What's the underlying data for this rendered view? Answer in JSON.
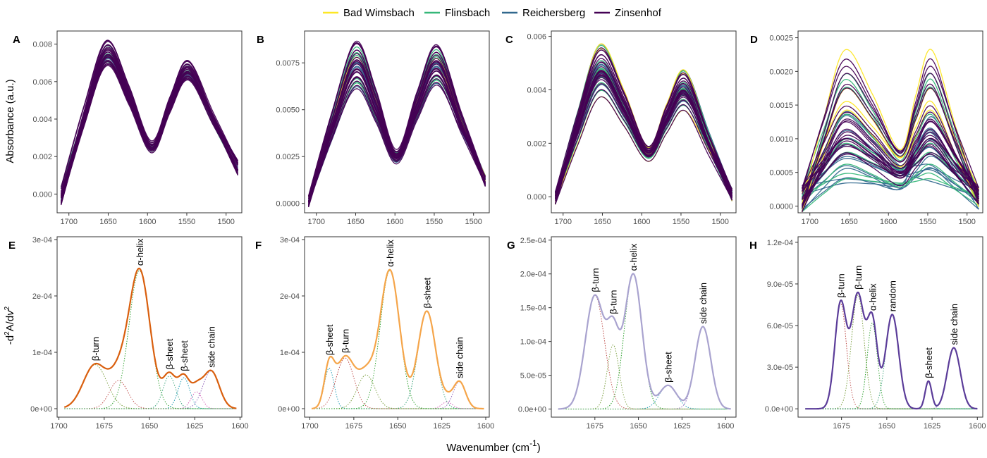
{
  "legend": {
    "entries": [
      {
        "name": "Bad Wimsbach",
        "color": "#FDE725"
      },
      {
        "name": "Flinsbach",
        "color": "#35B779"
      },
      {
        "name": "Reichersberg",
        "color": "#31688E"
      },
      {
        "name": "Zinsenhof",
        "color": "#440154"
      }
    ]
  },
  "axes": {
    "y_top": "Absorbance (a.u.)",
    "y_bottom_parts": [
      "-d",
      "2",
      "A/d",
      "v",
      "2"
    ],
    "x_parts": [
      "Wavenumber (cm",
      "-1",
      ")"
    ]
  },
  "chart_data": [
    {
      "panel": "A",
      "type": "line",
      "description_series": "absorbance spectra",
      "xlim": [
        1715,
        1480
      ],
      "xticks": [
        1700,
        1650,
        1600,
        1550,
        1500
      ],
      "ylim": [
        -0.001,
        0.0087
      ],
      "yticks": [
        0,
        0.002,
        0.004,
        0.006,
        0.008
      ],
      "ytick_labels": [
        "0.000",
        "0.002",
        "0.004",
        "0.006",
        "0.008"
      ],
      "peak1": {
        "x": 1652,
        "y_min": 0.0066,
        "y_max": 0.0083
      },
      "valley": {
        "x": 1595,
        "y_min": 0.0021,
        "y_max": 0.0029
      },
      "peak2": {
        "x": 1548,
        "y_min": 0.0059,
        "y_max": 0.0072
      },
      "start": {
        "x": 1710,
        "y_min": -0.0006,
        "y_max": 0.0004
      },
      "end": {
        "x": 1485,
        "y_min": 0.001,
        "y_max": 0.0018
      },
      "groups": [
        {
          "name": "Bad Wimsbach",
          "n": 0
        },
        {
          "name": "Flinsbach",
          "n": 6
        },
        {
          "name": "Reichersberg",
          "n": 5
        },
        {
          "name": "Zinsenhof",
          "n": 24
        }
      ]
    },
    {
      "panel": "B",
      "type": "line",
      "xlim": [
        1715,
        1480
      ],
      "xticks": [
        1700,
        1650,
        1600,
        1550,
        1500
      ],
      "ylim": [
        -0.0005,
        0.0092
      ],
      "yticks": [
        0,
        0.0025,
        0.005,
        0.0075
      ],
      "ytick_labels": [
        "0.0000",
        "0.0025",
        "0.0050",
        "0.0075"
      ],
      "peak1": {
        "x": 1650,
        "y_min": 0.0061,
        "y_max": 0.0087
      },
      "valley": {
        "x": 1598,
        "y_min": 0.0021,
        "y_max": 0.0029
      },
      "peak2": {
        "x": 1546,
        "y_min": 0.0063,
        "y_max": 0.0085
      },
      "start": {
        "x": 1710,
        "y_min": -0.0002,
        "y_max": 0.0004
      },
      "end": {
        "x": 1485,
        "y_min": 0.0009,
        "y_max": 0.0015
      },
      "groups": [
        {
          "name": "Bad Wimsbach",
          "n": 2
        },
        {
          "name": "Flinsbach",
          "n": 6
        },
        {
          "name": "Reichersberg",
          "n": 5
        },
        {
          "name": "Zinsenhof",
          "n": 24
        }
      ]
    },
    {
      "panel": "C",
      "type": "line",
      "xlim": [
        1715,
        1480
      ],
      "xticks": [
        1700,
        1650,
        1600,
        1550,
        1500
      ],
      "ylim": [
        -0.0006,
        0.0062
      ],
      "yticks": [
        0,
        0.002,
        0.004,
        0.006
      ],
      "ytick_labels": [
        "0.000",
        "0.002",
        "0.004",
        "0.006"
      ],
      "peak1": {
        "x": 1653,
        "y_min": 0.0037,
        "y_max": 0.0058
      },
      "valley": {
        "x": 1592,
        "y_min": 0.0013,
        "y_max": 0.002
      },
      "peak2": {
        "x": 1545,
        "y_min": 0.0032,
        "y_max": 0.0048
      },
      "start": {
        "x": 1710,
        "y_min": -0.0003,
        "y_max": 0.0002
      },
      "end": {
        "x": 1485,
        "y_min": -0.0002,
        "y_max": 0.0003
      },
      "groups": [
        {
          "name": "Bad Wimsbach",
          "n": 4
        },
        {
          "name": "Flinsbach",
          "n": 8
        },
        {
          "name": "Reichersberg",
          "n": 10
        },
        {
          "name": "Zinsenhof",
          "n": 22
        }
      ]
    },
    {
      "panel": "D",
      "type": "line",
      "xlim": [
        1715,
        1480
      ],
      "xticks": [
        1700,
        1650,
        1600,
        1550,
        1500
      ],
      "ylim": [
        -0.0001,
        0.0026
      ],
      "yticks": [
        0,
        0.0005,
        0.001,
        0.0015,
        0.002,
        0.0025
      ],
      "ytick_labels": [
        "0.0000",
        "0.0005",
        "0.0010",
        "0.0015",
        "0.0020",
        "0.0025"
      ],
      "peak1": {
        "x": 1655,
        "y_min": 0.0002,
        "y_max": 0.00245
      },
      "valley": {
        "x": 1585,
        "y_min": 0.0001,
        "y_max": 0.00105
      },
      "peak2": {
        "x": 1545,
        "y_min": 0.0002,
        "y_max": 0.00245
      },
      "start": {
        "x": 1710,
        "y_min": -0.0001,
        "y_max": 0.0003
      },
      "end": {
        "x": 1485,
        "y_min": -5e-05,
        "y_max": 0.0003
      },
      "groups": [
        {
          "name": "Bad Wimsbach",
          "n": 4
        },
        {
          "name": "Flinsbach",
          "n": 10
        },
        {
          "name": "Reichersberg",
          "n": 14
        },
        {
          "name": "Zinsenhof",
          "n": 20
        }
      ]
    },
    {
      "panel": "E",
      "type": "line",
      "color": "#D95F0E",
      "xlim": [
        1701,
        1599
      ],
      "xticks": [
        1700,
        1675,
        1650,
        1625,
        1600
      ],
      "xtick_labels": [
        "1700",
        "1675",
        "1650",
        "1625",
        "1600"
      ],
      "ylim": [
        -1.5e-05,
        0.000305
      ],
      "yticks": [
        0,
        0.0001,
        0.0002,
        0.0003
      ],
      "ytick_labels": [
        "0e+00",
        "1e-04",
        "2e-04",
        "3e-04"
      ],
      "range": [
        1697,
        1602
      ],
      "bands": [
        {
          "label": "β-turn",
          "center": 1680,
          "height": 7.8e-05,
          "width": 6.5,
          "color": "#7a9e3e"
        },
        {
          "label": "",
          "center": 1667,
          "height": 5e-05,
          "width": 5,
          "color": "#c0504d"
        },
        {
          "label": "α-helix",
          "center": 1655.5,
          "height": 0.000245,
          "width": 5.8,
          "color": "#2ca02c"
        },
        {
          "label": "β-sheet",
          "center": 1639,
          "height": 5.8e-05,
          "width": 3.5,
          "color": "#3aa37a"
        },
        {
          "label": "β-sheet",
          "center": 1631,
          "height": 5.5e-05,
          "width": 3.2,
          "color": "#1f9bb5"
        },
        {
          "label": "",
          "center": 1624,
          "height": 3e-05,
          "width": 3,
          "color": "#d35fb7"
        },
        {
          "label": "side chain",
          "center": 1616,
          "height": 6.7e-05,
          "width": 4.5,
          "color": "#9467bd"
        }
      ]
    },
    {
      "panel": "F",
      "type": "line",
      "color": "#F5A54A",
      "xlim": [
        1703,
        1598
      ],
      "xticks": [
        1700,
        1675,
        1650,
        1625,
        1600
      ],
      "xtick_labels": [
        "1700",
        "1675",
        "1650",
        "1625",
        "1600"
      ],
      "ylim": [
        -1.5e-05,
        0.000305
      ],
      "yticks": [
        0,
        0.0001,
        0.0002,
        0.0003
      ],
      "ytick_labels": [
        "0e+00",
        "1e-04",
        "2e-04",
        "3e-04"
      ],
      "range": [
        1699,
        1601
      ],
      "bands": [
        {
          "label": "β-sheet",
          "center": 1689,
          "height": 7.2e-05,
          "width": 2.8,
          "color": "#1f9bb5"
        },
        {
          "label": "β-turn",
          "center": 1680,
          "height": 9e-05,
          "width": 5,
          "color": "#c0504d"
        },
        {
          "label": "",
          "center": 1668,
          "height": 6e-05,
          "width": 5,
          "color": "#7a9e3e"
        },
        {
          "label": "α-helix",
          "center": 1654.5,
          "height": 0.000245,
          "width": 5.5,
          "color": "#2ca02c"
        },
        {
          "label": "β-sheet",
          "center": 1633.5,
          "height": 0.000173,
          "width": 5,
          "color": "#3aa37a"
        },
        {
          "label": "",
          "center": 1622,
          "height": 1.2e-05,
          "width": 3,
          "color": "#d35fb7"
        },
        {
          "label": "side chain",
          "center": 1615,
          "height": 4.8e-05,
          "width": 3.5,
          "color": "#9467bd"
        }
      ]
    },
    {
      "panel": "G",
      "type": "line",
      "color": "#A9A3CF",
      "xlim": [
        1700,
        1594
      ],
      "xticks": [
        1675,
        1650,
        1625,
        1600
      ],
      "xtick_labels": [
        "1675",
        "1650",
        "1625",
        "1600"
      ],
      "ylim": [
        -1.2e-05,
        0.000255
      ],
      "yticks": [
        0,
        5e-05,
        0.0001,
        0.00015,
        0.0002,
        0.00025
      ],
      "ytick_labels": [
        "0.0e+00",
        "5.0e-05",
        "1.0e-04",
        "1.5e-04",
        "2.0e-04",
        "2.5e-04"
      ],
      "range": [
        1696,
        1597
      ],
      "bands": [
        {
          "label": "β-turn",
          "center": 1675,
          "height": 0.000168,
          "width": 5.5,
          "color": "#c0504d"
        },
        {
          "label": "β-turn",
          "center": 1664.5,
          "height": 9.5e-05,
          "width": 3.4,
          "color": "#7a9e3e"
        },
        {
          "label": "α-helix",
          "center": 1653,
          "height": 0.0002,
          "width": 5,
          "color": "#2ca02c"
        },
        {
          "label": "β-sheet",
          "center": 1633,
          "height": 3.5e-05,
          "width": 5,
          "color": "#1f9bb5"
        },
        {
          "label": "side chain",
          "center": 1613,
          "height": 0.000122,
          "width": 4.5,
          "color": "#9467bd"
        }
      ]
    },
    {
      "panel": "H",
      "type": "line",
      "color": "#5B3C99",
      "xlim": [
        1699,
        1597
      ],
      "xticks": [
        1675,
        1650,
        1625,
        1600
      ],
      "xtick_labels": [
        "1675",
        "1650",
        "1625",
        "1600"
      ],
      "ylim": [
        -6e-06,
        0.000124
      ],
      "yticks": [
        0,
        3e-05,
        6e-05,
        9e-05,
        0.00012
      ],
      "ytick_labels": [
        "0.0e+00",
        "3.0e-05",
        "6.0e-05",
        "9.0e-05",
        "1.2e-04"
      ],
      "range": [
        1695,
        1600
      ],
      "bands": [
        {
          "label": "β-turn",
          "center": 1675.5,
          "height": 7.6e-05,
          "width": 3.2,
          "color": "#c0504d"
        },
        {
          "label": "β-turn",
          "center": 1666,
          "height": 8.2e-05,
          "width": 3.5,
          "color": "#7a9e3e"
        },
        {
          "label": "α-helix",
          "center": 1658,
          "height": 6.2e-05,
          "width": 2.8,
          "color": "#2ca02c"
        },
        {
          "label": "random",
          "center": 1647,
          "height": 6.8e-05,
          "width": 3.6,
          "color": "#3aa37a"
        },
        {
          "label": "β-sheet",
          "center": 1627,
          "height": 2e-05,
          "width": 1.8,
          "color": "#1f9bb5"
        },
        {
          "label": "side chain",
          "center": 1613,
          "height": 4.4e-05,
          "width": 3.6,
          "color": "#9467bd"
        }
      ]
    }
  ]
}
